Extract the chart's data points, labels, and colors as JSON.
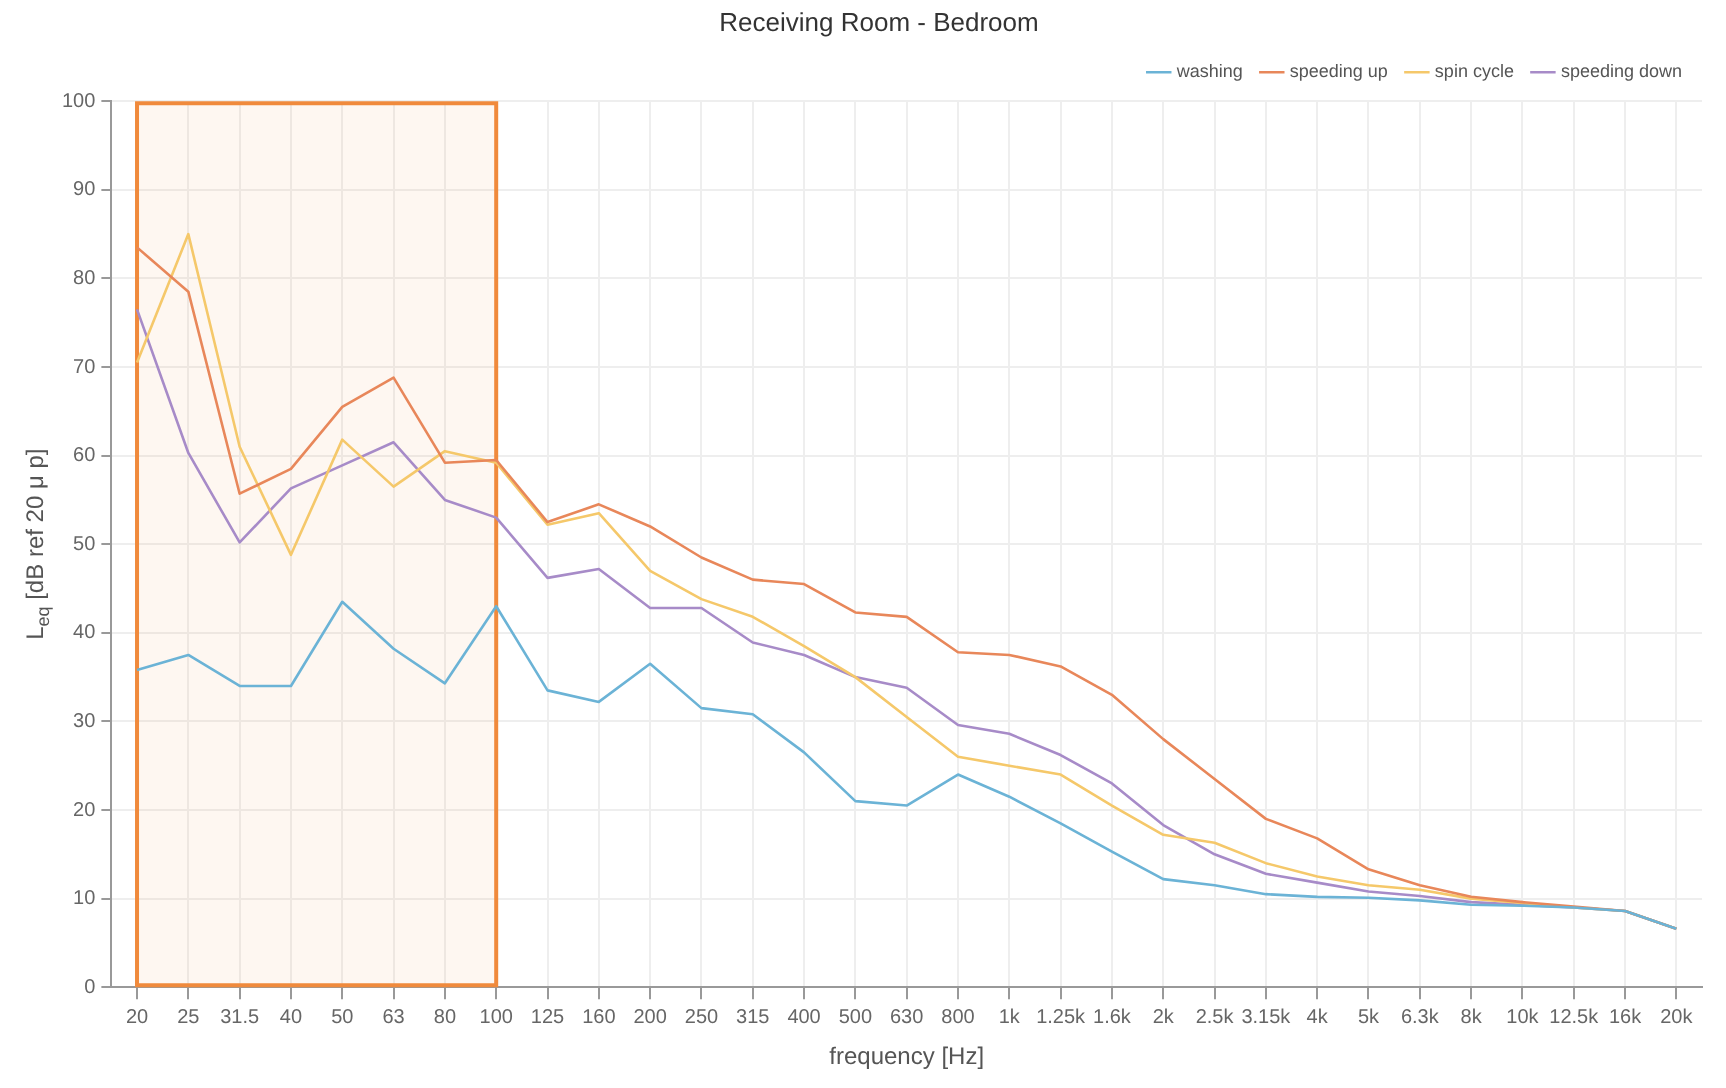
{
  "chart_data": {
    "type": "line",
    "title": "Receiving Room - Bedroom",
    "xlabel": "frequency [Hz]",
    "ylabel": "L$_{eq}$ [dB ref 20 μ p]",
    "categories": [
      "20",
      "25",
      "31.5",
      "40",
      "50",
      "63",
      "80",
      "100",
      "125",
      "160",
      "200",
      "250",
      "315",
      "400",
      "500",
      "630",
      "800",
      "1k",
      "1.25k",
      "1.6k",
      "2k",
      "2.5k",
      "3.15k",
      "4k",
      "5k",
      "6.3k",
      "8k",
      "10k",
      "12.5k",
      "16k",
      "20k"
    ],
    "series": [
      {
        "name": "washing",
        "color": "#6bb3d6",
        "values": [
          35.8,
          37.5,
          34,
          34,
          43.5,
          38.2,
          34.3,
          43,
          33.5,
          32.2,
          36.5,
          31.5,
          30.8,
          26.5,
          21,
          20.5,
          24,
          21.5,
          18.5,
          15.3,
          12.2,
          11.5,
          10.5,
          10.2,
          10.1,
          9.8,
          9.3,
          9.2,
          9,
          8.6,
          6.6
        ]
      },
      {
        "name": "speeding up",
        "color": "#e8875a",
        "values": [
          83.5,
          78.5,
          55.7,
          58.5,
          65.5,
          68.8,
          59.2,
          59.5,
          52.5,
          54.5,
          52,
          48.5,
          46,
          45.5,
          42.3,
          41.8,
          37.8,
          37.5,
          36.2,
          33,
          28,
          23.5,
          19,
          16.8,
          13.3,
          11.5,
          10.2,
          9.6,
          9.1,
          8.6,
          6.6
        ]
      },
      {
        "name": "spin cycle",
        "color": "#f5c86a",
        "values": [
          70.5,
          85,
          61,
          48.8,
          61.8,
          56.5,
          60.5,
          59.2,
          52.2,
          53.5,
          47,
          43.8,
          41.8,
          38.5,
          35,
          30.5,
          26,
          25,
          24,
          20.5,
          17.2,
          16.3,
          14,
          12.5,
          11.5,
          11,
          10,
          9.5,
          9,
          8.6,
          6.6
        ]
      },
      {
        "name": "speeding down",
        "color": "#a78bc8",
        "values": [
          76.5,
          60.3,
          50.2,
          56.3,
          58.9,
          61.5,
          55,
          53,
          46.2,
          47.2,
          42.8,
          42.8,
          38.9,
          37.5,
          35,
          33.8,
          29.6,
          28.6,
          26.2,
          23,
          18.3,
          15,
          12.8,
          11.8,
          10.8,
          10.3,
          9.6,
          9.3,
          9,
          8.6,
          6.6
        ]
      }
    ],
    "ylim": [
      0,
      100
    ],
    "yticks": [
      0,
      10,
      20,
      30,
      40,
      50,
      60,
      70,
      80,
      90,
      100
    ],
    "bands": [
      {
        "axis": "x",
        "from": "20",
        "to": "100",
        "color": "#f08a3c"
      }
    ],
    "grid": true,
    "legend": "top right",
    "marker": "none",
    "line_style": "solid"
  }
}
